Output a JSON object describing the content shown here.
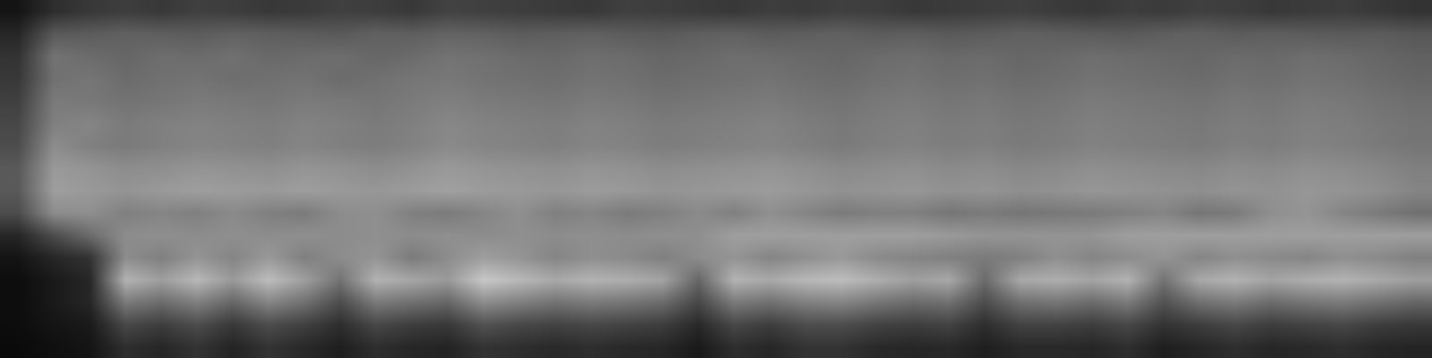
{
  "chart_data": {
    "type": "heatmap",
    "color": "gray",
    "tick_labels": false,
    "zlim": [
      0,
      100
    ],
    "z": [
      [
        8,
        18,
        22,
        24,
        22,
        25,
        24,
        22,
        23,
        25,
        24,
        22,
        26,
        25,
        24,
        23,
        22,
        25,
        24,
        23,
        22,
        24,
        23,
        25,
        24,
        22,
        23,
        24,
        25,
        23,
        22,
        24,
        23,
        25,
        24,
        22,
        23,
        24,
        22,
        20
      ],
      [
        15,
        35,
        36,
        38,
        37,
        36,
        38,
        37,
        36,
        35,
        38,
        37,
        39,
        38,
        36,
        37,
        38,
        36,
        35,
        37,
        38,
        36,
        37,
        38,
        36,
        37,
        35,
        36,
        38,
        37,
        36,
        35,
        37,
        38,
        36,
        37,
        36,
        35,
        36,
        34
      ],
      [
        20,
        45,
        42,
        40,
        43,
        42,
        44,
        41,
        42,
        43,
        40,
        42,
        45,
        44,
        42,
        41,
        43,
        42,
        40,
        41,
        43,
        42,
        41,
        40,
        42,
        43,
        41,
        42,
        40,
        41,
        43,
        42,
        41,
        40,
        42,
        41,
        43,
        42,
        40,
        38
      ],
      [
        22,
        44,
        46,
        42,
        44,
        45,
        43,
        44,
        45,
        42,
        44,
        46,
        47,
        45,
        44,
        43,
        45,
        44,
        42,
        43,
        44,
        45,
        43,
        42,
        44,
        45,
        43,
        44,
        42,
        43,
        45,
        44,
        43,
        42,
        44,
        43,
        45,
        44,
        42,
        40
      ],
      [
        25,
        48,
        47,
        45,
        46,
        48,
        47,
        46,
        48,
        47,
        46,
        48,
        50,
        48,
        47,
        46,
        48,
        47,
        45,
        46,
        47,
        48,
        46,
        45,
        47,
        48,
        46,
        47,
        45,
        46,
        48,
        47,
        46,
        45,
        47,
        46,
        48,
        47,
        45,
        43
      ],
      [
        28,
        50,
        52,
        48,
        50,
        51,
        50,
        49,
        51,
        50,
        48,
        50,
        53,
        51,
        50,
        49,
        51,
        50,
        48,
        49,
        50,
        51,
        49,
        47,
        49,
        50,
        48,
        49,
        47,
        48,
        50,
        49,
        48,
        47,
        49,
        48,
        50,
        49,
        47,
        45
      ],
      [
        30,
        55,
        50,
        48,
        50,
        52,
        51,
        50,
        52,
        50,
        49,
        51,
        54,
        52,
        51,
        50,
        52,
        51,
        49,
        50,
        51,
        52,
        50,
        48,
        50,
        51,
        49,
        50,
        48,
        49,
        51,
        50,
        49,
        48,
        50,
        49,
        51,
        50,
        48,
        46
      ],
      [
        35,
        60,
        58,
        55,
        56,
        58,
        57,
        56,
        58,
        57,
        55,
        57,
        60,
        58,
        57,
        56,
        58,
        57,
        55,
        56,
        57,
        58,
        56,
        54,
        55,
        56,
        54,
        55,
        53,
        54,
        56,
        55,
        54,
        53,
        55,
        54,
        56,
        55,
        53,
        50
      ],
      [
        35,
        62,
        60,
        58,
        60,
        62,
        61,
        60,
        62,
        60,
        59,
        61,
        63,
        61,
        60,
        59,
        61,
        60,
        58,
        59,
        60,
        61,
        59,
        57,
        58,
        59,
        57,
        58,
        56,
        57,
        59,
        58,
        57,
        56,
        58,
        57,
        59,
        58,
        56,
        52
      ],
      [
        30,
        55,
        56,
        50,
        52,
        50,
        54,
        50,
        48,
        55,
        56,
        50,
        48,
        52,
        56,
        50,
        52,
        48,
        50,
        54,
        50,
        56,
        52,
        48,
        50,
        50,
        46,
        48,
        46,
        47,
        48,
        50,
        52,
        46,
        48,
        56,
        58,
        52,
        48,
        44
      ],
      [
        15,
        30,
        42,
        55,
        56,
        55,
        56,
        55,
        56,
        55,
        56,
        55,
        56,
        55,
        56,
        55,
        56,
        55,
        56,
        56,
        62,
        62,
        62,
        62,
        62,
        62,
        60,
        58,
        58,
        58,
        58,
        62,
        62,
        62,
        62,
        62,
        62,
        62,
        62,
        62
      ],
      [
        8,
        15,
        20,
        55,
        50,
        58,
        52,
        60,
        50,
        55,
        58,
        48,
        55,
        62,
        58,
        52,
        56,
        54,
        50,
        55,
        58,
        52,
        56,
        60,
        54,
        52,
        50,
        48,
        50,
        56,
        52,
        55,
        58,
        52,
        56,
        54,
        52,
        56,
        54,
        50
      ],
      [
        5,
        10,
        15,
        70,
        62,
        72,
        60,
        74,
        62,
        45,
        70,
        65,
        60,
        78,
        72,
        66,
        70,
        68,
        64,
        40,
        70,
        66,
        72,
        74,
        68,
        62,
        66,
        42,
        66,
        68,
        64,
        70,
        45,
        66,
        70,
        64,
        68,
        70,
        66,
        62
      ],
      [
        5,
        10,
        15,
        48,
        42,
        50,
        40,
        52,
        44,
        30,
        48,
        44,
        40,
        55,
        50,
        45,
        48,
        46,
        42,
        28,
        48,
        44,
        50,
        52,
        46,
        42,
        44,
        30,
        44,
        46,
        42,
        48,
        32,
        44,
        48,
        42,
        46,
        48,
        44,
        40
      ],
      [
        5,
        8,
        10,
        28,
        24,
        30,
        22,
        30,
        25,
        18,
        28,
        24,
        22,
        32,
        28,
        26,
        28,
        26,
        24,
        16,
        28,
        24,
        30,
        30,
        26,
        24,
        26,
        18,
        26,
        26,
        24,
        28,
        20,
        24,
        28,
        24,
        26,
        28,
        24,
        22
      ],
      [
        4,
        6,
        8,
        18,
        15,
        20,
        14,
        20,
        16,
        12,
        18,
        15,
        14,
        20,
        18,
        16,
        18,
        16,
        15,
        10,
        18,
        15,
        20,
        20,
        16,
        15,
        16,
        12,
        16,
        16,
        15,
        18,
        12,
        15,
        18,
        15,
        16,
        18,
        15,
        14
      ]
    ]
  }
}
